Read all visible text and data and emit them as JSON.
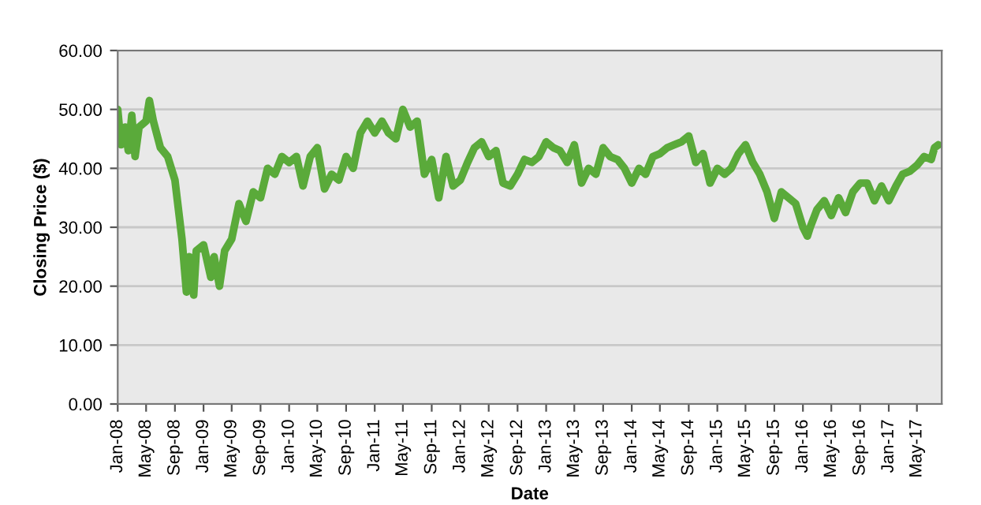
{
  "chart_data": {
    "type": "line",
    "xlabel": "Date",
    "ylabel": "Closing Price ($)",
    "ylim": [
      0,
      60
    ],
    "yticks": [
      {
        "value": 0,
        "label": "0.00"
      },
      {
        "value": 10,
        "label": "10.00"
      },
      {
        "value": 20,
        "label": "20.00"
      },
      {
        "value": 30,
        "label": "30.00"
      },
      {
        "value": 40,
        "label": "40.00"
      },
      {
        "value": 50,
        "label": "50.00"
      },
      {
        "value": 60,
        "label": "60.00"
      }
    ],
    "xlim": [
      "2008-01-01",
      "2017-08-15"
    ],
    "xticks": [
      {
        "value": "2008-01",
        "label": "Jan-08"
      },
      {
        "value": "2008-05",
        "label": "May-08"
      },
      {
        "value": "2008-09",
        "label": "Sep-08"
      },
      {
        "value": "2009-01",
        "label": "Jan-09"
      },
      {
        "value": "2009-05",
        "label": "May-09"
      },
      {
        "value": "2009-09",
        "label": "Sep-09"
      },
      {
        "value": "2010-01",
        "label": "Jan-10"
      },
      {
        "value": "2010-05",
        "label": "May-10"
      },
      {
        "value": "2010-09",
        "label": "Sep-10"
      },
      {
        "value": "2011-01",
        "label": "Jan-11"
      },
      {
        "value": "2011-05",
        "label": "May-11"
      },
      {
        "value": "2011-09",
        "label": "Sep-11"
      },
      {
        "value": "2012-01",
        "label": "Jan-12"
      },
      {
        "value": "2012-05",
        "label": "May-12"
      },
      {
        "value": "2012-09",
        "label": "Sep-12"
      },
      {
        "value": "2013-01",
        "label": "Jan-13"
      },
      {
        "value": "2013-05",
        "label": "May-13"
      },
      {
        "value": "2013-09",
        "label": "Sep-13"
      },
      {
        "value": "2014-01",
        "label": "Jan-14"
      },
      {
        "value": "2014-05",
        "label": "May-14"
      },
      {
        "value": "2014-09",
        "label": "Sep-14"
      },
      {
        "value": "2015-01",
        "label": "Jan-15"
      },
      {
        "value": "2015-05",
        "label": "May-15"
      },
      {
        "value": "2015-09",
        "label": "Sep-15"
      },
      {
        "value": "2016-01",
        "label": "Jan-16"
      },
      {
        "value": "2016-05",
        "label": "May-16"
      },
      {
        "value": "2016-09",
        "label": "Sep-16"
      },
      {
        "value": "2017-01",
        "label": "Jan-17"
      },
      {
        "value": "2017-05",
        "label": "May-17"
      }
    ],
    "grid": "y",
    "x": [
      "2008-01-01",
      "2008-01-15",
      "2008-02-01",
      "2008-02-15",
      "2008-03-01",
      "2008-03-15",
      "2008-04-01",
      "2008-05-01",
      "2008-05-15",
      "2008-06-01",
      "2008-07-01",
      "2008-08-01",
      "2008-09-01",
      "2008-10-01",
      "2008-10-20",
      "2008-11-01",
      "2008-11-20",
      "2008-12-01",
      "2009-01-01",
      "2009-02-01",
      "2009-02-15",
      "2009-03-10",
      "2009-04-01",
      "2009-05-01",
      "2009-06-01",
      "2009-07-01",
      "2009-08-01",
      "2009-09-01",
      "2009-10-01",
      "2009-11-01",
      "2009-12-01",
      "2010-01-01",
      "2010-02-01",
      "2010-03-01",
      "2010-04-01",
      "2010-05-01",
      "2010-06-01",
      "2010-07-01",
      "2010-08-01",
      "2010-09-01",
      "2010-10-01",
      "2010-11-01",
      "2010-12-01",
      "2011-01-01",
      "2011-02-01",
      "2011-03-01",
      "2011-04-01",
      "2011-05-01",
      "2011-06-01",
      "2011-07-01",
      "2011-08-01",
      "2011-09-01",
      "2011-10-01",
      "2011-11-01",
      "2011-12-01",
      "2012-01-01",
      "2012-02-01",
      "2012-03-01",
      "2012-04-01",
      "2012-05-01",
      "2012-06-01",
      "2012-07-01",
      "2012-08-01",
      "2012-09-01",
      "2012-10-01",
      "2012-11-01",
      "2012-12-01",
      "2013-01-01",
      "2013-02-01",
      "2013-03-01",
      "2013-04-01",
      "2013-05-01",
      "2013-06-01",
      "2013-07-01",
      "2013-08-01",
      "2013-09-01",
      "2013-10-01",
      "2013-11-01",
      "2013-12-01",
      "2014-01-01",
      "2014-02-01",
      "2014-03-01",
      "2014-04-01",
      "2014-05-01",
      "2014-06-01",
      "2014-07-01",
      "2014-08-01",
      "2014-09-01",
      "2014-10-01",
      "2014-11-01",
      "2014-12-01",
      "2015-01-01",
      "2015-02-01",
      "2015-03-01",
      "2015-04-01",
      "2015-05-01",
      "2015-06-01",
      "2015-07-01",
      "2015-08-01",
      "2015-09-01",
      "2015-10-01",
      "2015-11-01",
      "2015-12-01",
      "2016-01-01",
      "2016-01-20",
      "2016-02-01",
      "2016-03-01",
      "2016-04-01",
      "2016-05-01",
      "2016-06-01",
      "2016-07-01",
      "2016-08-01",
      "2016-09-01",
      "2016-10-01",
      "2016-11-01",
      "2016-12-01",
      "2017-01-01",
      "2017-02-01",
      "2017-03-01",
      "2017-04-01",
      "2017-05-01",
      "2017-06-01",
      "2017-07-01",
      "2017-07-15",
      "2017-08-01"
    ],
    "series": [
      {
        "color": "#5aaa3a",
        "values": [
          50,
          44,
          47,
          43,
          49,
          42,
          47,
          48,
          51.5,
          48,
          43.5,
          42,
          38,
          28,
          19,
          25,
          18.5,
          26,
          27,
          21.5,
          25,
          20,
          26,
          28,
          34,
          31,
          36,
          35,
          40,
          39,
          42,
          41,
          42,
          37,
          42,
          43.5,
          36.5,
          39,
          38,
          42,
          40,
          46,
          48,
          46,
          48,
          46,
          45,
          50,
          47,
          48,
          39,
          41.5,
          35,
          42,
          37,
          38,
          41,
          43.5,
          44.5,
          42,
          43,
          37.5,
          37,
          39,
          41.5,
          41,
          42,
          44.5,
          43.5,
          43,
          41,
          44,
          37.5,
          40,
          39,
          43.5,
          42,
          41.5,
          40,
          37.5,
          40,
          39,
          42,
          42.5,
          43.5,
          44,
          44.5,
          45.5,
          41,
          42.5,
          37.5,
          40,
          39,
          40,
          42.5,
          44,
          41,
          39,
          36,
          31.5,
          36,
          35,
          34,
          30,
          28.5,
          30,
          33,
          34.5,
          32,
          35,
          32.5,
          36,
          37.5,
          37.5,
          34.5,
          37,
          34.5,
          37,
          39,
          39.5,
          40.5,
          42,
          41.5,
          43.5,
          44
        ]
      }
    ]
  }
}
